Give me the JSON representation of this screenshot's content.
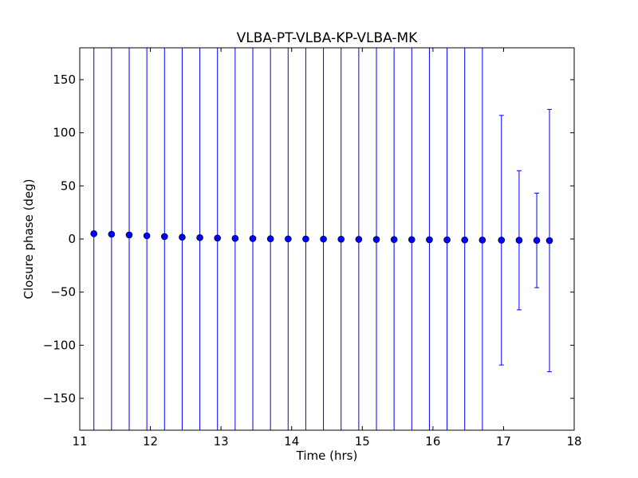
{
  "chart_data": {
    "type": "scatter",
    "title": "VLBA-PT-VLBA-KP-VLBA-MK",
    "xlabel": "Time (hrs)",
    "ylabel": "Closure phase (deg)",
    "xlim": [
      11,
      18
    ],
    "ylim": [
      -180,
      180
    ],
    "xticks": [
      11,
      12,
      13,
      14,
      15,
      16,
      17,
      18
    ],
    "xtick_labels": [
      "11",
      "12",
      "13",
      "14",
      "15",
      "16",
      "17",
      "18"
    ],
    "yticks": [
      -150,
      -100,
      -50,
      0,
      50,
      100,
      150
    ],
    "ytick_labels": [
      "−150",
      "−100",
      "−50",
      "0",
      "50",
      "100",
      "150"
    ],
    "grid": false,
    "legend": false,
    "color": "#0000ff",
    "series": [
      {
        "x": [
          11.2,
          11.45,
          11.7,
          11.95,
          12.2,
          12.45,
          12.7,
          12.95,
          13.2,
          13.45,
          13.7,
          13.95,
          14.2,
          14.45,
          14.7,
          14.95,
          15.2,
          15.45,
          15.7,
          15.95,
          16.2,
          16.45,
          16.7,
          16.97,
          17.22,
          17.47,
          17.65
        ],
        "y": [
          5.0,
          4.5,
          3.8,
          3.0,
          2.3,
          1.7,
          1.3,
          0.9,
          0.6,
          0.4,
          0.2,
          0.1,
          0.0,
          -0.1,
          -0.2,
          -0.3,
          -0.4,
          -0.5,
          -0.6,
          -0.7,
          -0.8,
          -0.9,
          -1.0,
          -1.1,
          -1.2,
          -1.3,
          -1.5
        ],
        "yerr": [
          999,
          999,
          999,
          999,
          999,
          999,
          999,
          999,
          999,
          999,
          999,
          999,
          999,
          999,
          999,
          999,
          999,
          999,
          999,
          999,
          999,
          999,
          999,
          117.5,
          65.5,
          44.5,
          123.5
        ]
      }
    ]
  }
}
